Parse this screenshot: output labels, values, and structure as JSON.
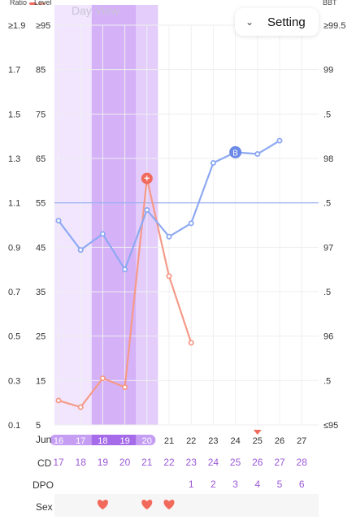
{
  "legend": {
    "ratio": "Ratio",
    "level": "Level",
    "bbt": "BBT",
    "ratio_color": "#f0685e",
    "ratio_color2": "#f4a28f",
    "level_color": "#9b59e6",
    "bbt_color": "#7fa0f0"
  },
  "header": {
    "day_view": "Day View",
    "setting_label": "Setting",
    "setting_icon": "chevron-down-icon"
  },
  "axes": {
    "ratio_ticks": [
      "≥1.9",
      "1.7",
      "1.5",
      "1.3",
      "1.1",
      "0.9",
      "0.7",
      "0.5",
      "0.3",
      "0.1"
    ],
    "level_ticks": [
      "≥95",
      "85",
      "75",
      "65",
      "55",
      "45",
      "35",
      "25",
      "15",
      "5"
    ],
    "bbt_ticks": [
      "≥99.5",
      "99",
      ".5",
      "98",
      ".5",
      "97",
      ".5",
      "96",
      ".5",
      "≤95"
    ]
  },
  "month_label": "Jun",
  "days": [
    "16",
    "17",
    "18",
    "19",
    "20",
    "21",
    "22",
    "23",
    "24",
    "25",
    "26",
    "27"
  ],
  "cd_label": "CD",
  "cd_values": [
    "17",
    "18",
    "19",
    "20",
    "21",
    "22",
    "23",
    "24",
    "25",
    "26",
    "27",
    "28"
  ],
  "dpo_label": "DPO",
  "dpo_values": [
    "",
    "",
    "",
    "",
    "",
    "",
    "1",
    "2",
    "3",
    "4",
    "5",
    "6"
  ],
  "sex_label": "Sex",
  "sex_days": [
    false,
    false,
    true,
    false,
    true,
    true,
    false,
    false,
    false,
    false,
    false,
    false
  ],
  "colors": {
    "fertile_light": "#f1e6fd",
    "fertile_mid": "#e4cdfb",
    "fertile_peak": "#d5b1f8",
    "pill_light": "#c59ef3",
    "pill_dark": "#a56be8",
    "bbt_line": "#8ea9f2",
    "ratio_line": "#f59a88",
    "marker_red": "#f16b5c",
    "marker_blue": "#6b8ae8",
    "heart": "#f26a5b",
    "cd_text": "#9b59d6",
    "bottom_row_bg": "#f6f6f6"
  },
  "chart_data": {
    "type": "line",
    "x": [
      "16",
      "17",
      "18",
      "19",
      "20",
      "21",
      "22",
      "23",
      "24",
      "25",
      "26",
      "27"
    ],
    "series": [
      {
        "name": "BBT",
        "axis": "right",
        "values": [
          97.3,
          96.97,
          97.15,
          96.75,
          97.42,
          97.12,
          97.27,
          97.95,
          98.07,
          98.05,
          98.2,
          null
        ]
      },
      {
        "name": "Ratio",
        "axis": "left",
        "values": [
          0.21,
          0.18,
          0.31,
          0.27,
          1.21,
          0.77,
          0.47,
          null,
          null,
          null,
          null,
          null
        ]
      }
    ],
    "bbt_coverline": 97.5,
    "bbt_ylim": [
      95,
      99.5
    ],
    "ratio_ylim": [
      0.1,
      1.9
    ],
    "level_ylim": [
      5,
      95
    ],
    "markers": [
      {
        "series": "Ratio",
        "day": "20",
        "symbol": "+"
      },
      {
        "series": "BBT",
        "day": "24",
        "symbol": "B"
      }
    ],
    "fertile_window": {
      "start": "16",
      "end": "20",
      "peak": [
        "18",
        "19"
      ]
    },
    "ovulation_marker_day": "25",
    "grid": true
  }
}
